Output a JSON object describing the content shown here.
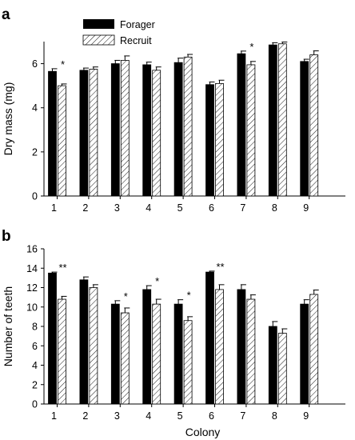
{
  "legend": {
    "forager_label": "Forager",
    "recruit_label": "Recruit"
  },
  "chart_data": [
    {
      "type": "bar",
      "panel": "a",
      "ylabel": "Dry mass (mg)",
      "xlabel": "",
      "ylim": [
        0,
        7
      ],
      "yticks": [
        0,
        2,
        4,
        6
      ],
      "categories": [
        "1",
        "2",
        "3",
        "4",
        "5",
        "6",
        "7",
        "8",
        "9"
      ],
      "series": [
        {
          "name": "Forager",
          "pattern": "solid",
          "values": [
            5.65,
            5.7,
            6.0,
            5.95,
            6.05,
            5.05,
            6.45,
            6.85,
            6.1
          ],
          "errors": [
            0.12,
            0.1,
            0.15,
            0.12,
            0.2,
            0.12,
            0.12,
            0.1,
            0.1
          ]
        },
        {
          "name": "Recruit",
          "pattern": "hatched",
          "values": [
            5.0,
            5.75,
            6.15,
            5.7,
            6.3,
            5.1,
            5.95,
            6.9,
            6.4
          ],
          "errors": [
            0.08,
            0.1,
            0.2,
            0.15,
            0.12,
            0.15,
            0.15,
            0.08,
            0.18
          ]
        }
      ],
      "significance": [
        {
          "category": "1",
          "label": "*"
        },
        {
          "category": "7",
          "label": "*"
        }
      ],
      "legend_position": "top-left",
      "grid": false
    },
    {
      "type": "bar",
      "panel": "b",
      "ylabel": "Number of teeth",
      "xlabel": "Colony",
      "ylim": [
        0,
        16
      ],
      "yticks": [
        0,
        2,
        4,
        6,
        8,
        10,
        12,
        14,
        16
      ],
      "categories": [
        "1",
        "2",
        "3",
        "4",
        "5",
        "6",
        "7",
        "8",
        "9"
      ],
      "series": [
        {
          "name": "Forager",
          "pattern": "solid",
          "values": [
            13.5,
            12.8,
            10.3,
            11.8,
            10.3,
            13.6,
            11.8,
            8.0,
            10.3
          ],
          "errors": [
            0.1,
            0.3,
            0.35,
            0.4,
            0.45,
            0.1,
            0.5,
            0.5,
            0.45
          ]
        },
        {
          "name": "Recruit",
          "pattern": "hatched",
          "values": [
            10.8,
            12.0,
            9.4,
            10.3,
            8.6,
            11.8,
            10.8,
            7.3,
            11.3
          ],
          "errors": [
            0.3,
            0.3,
            0.5,
            0.5,
            0.4,
            0.5,
            0.45,
            0.45,
            0.45
          ]
        }
      ],
      "significance": [
        {
          "category": "1",
          "label": "**"
        },
        {
          "category": "3",
          "label": "*"
        },
        {
          "category": "4",
          "label": "*"
        },
        {
          "category": "5",
          "label": "*"
        },
        {
          "category": "6",
          "label": "**"
        }
      ],
      "grid": false
    }
  ],
  "panel_labels": [
    "a",
    "b"
  ]
}
